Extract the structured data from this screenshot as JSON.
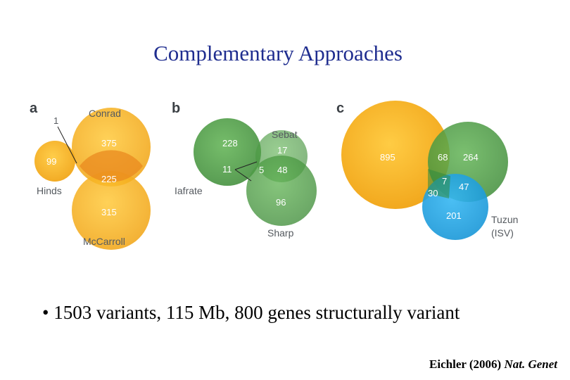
{
  "title": "Complementary Approaches",
  "panels": {
    "a": {
      "letter": "a",
      "sets": {
        "conrad": "Conrad",
        "hinds": "Hinds",
        "mccarroll": "McCarroll"
      },
      "values": {
        "hinds_only": "99",
        "pointer": "1",
        "conrad_only": "375",
        "conrad_mccarroll": "225",
        "mccarroll_only": "315"
      }
    },
    "b": {
      "letter": "b",
      "sets": {
        "sebat": "Sebat",
        "iafrate": "Iafrate",
        "sharp": "Sharp"
      },
      "values": {
        "iafrate_only": "228",
        "sebat_only": "17",
        "iafrate_sharp": "11",
        "center": "5",
        "sebat_sharp": "48",
        "sharp_only": "96"
      }
    },
    "c": {
      "letter": "c",
      "sets": {
        "tuzun_line1": "Tuzun",
        "tuzun_line2": "(ISV)"
      },
      "values": {
        "yellow_only": "895",
        "yellow_green": "68",
        "green_only": "264",
        "center": "7",
        "yellow_blue": "30",
        "green_blue": "47",
        "blue_only": "201"
      }
    }
  },
  "bullet": "• 1503 variants, 115 Mb, 800 genes structurally variant",
  "citation": {
    "author": "Eichler (2006) ",
    "journal": "Nat. Genet"
  },
  "colors": {
    "title": "#1f2d8f",
    "yellow": "#f6b31b",
    "green": "#4e9d44",
    "blue": "#1ea6e6"
  }
}
